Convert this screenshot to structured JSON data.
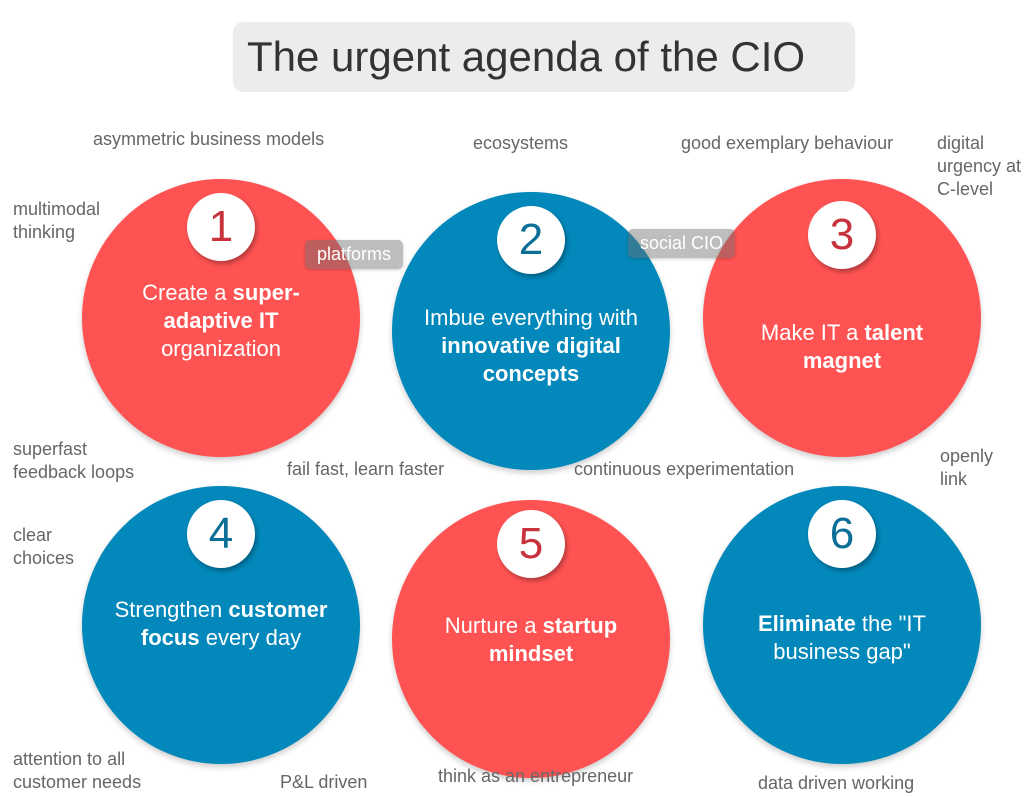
{
  "title": "The urgent agenda of the CIO",
  "items": [
    {
      "number": "1",
      "pre": "Create a ",
      "bold": "super-adaptive IT",
      "post": " organization",
      "color": "#ff5353"
    },
    {
      "number": "2",
      "pre": "Imbue everything with ",
      "bold": "innovative digital concepts",
      "post": "",
      "color": "#0288bb"
    },
    {
      "number": "3",
      "pre": "Make IT a ",
      "bold": "talent magnet",
      "post": "",
      "color": "#ff5353"
    },
    {
      "number": "4",
      "pre": "Strengthen ",
      "bold": "customer focus",
      "post": " every day",
      "color": "#0288bb"
    },
    {
      "number": "5",
      "pre": "Nurture a ",
      "bold": "startup mindset",
      "post": "",
      "color": "#ff5353"
    },
    {
      "number": "6",
      "pre": "",
      "bold": "Eliminate",
      "post": " the \"IT business gap\"",
      "color": "#0288bb"
    }
  ],
  "labels": {
    "asymmetric": "asymmetric business models",
    "ecosystems": "ecosystems",
    "exemplary": "good exemplary behaviour",
    "urgency": "digital urgency at C-level",
    "multimodal": "multimodal thinking",
    "superfast": "superfast feedback loops",
    "failfast": "fail fast, learn faster",
    "experimentation": "continuous experimentation",
    "openly": "openly link",
    "clear": "clear choices",
    "attention": "attention to all customer needs",
    "pl": "P&L driven",
    "entrepreneur": "think as an entrepreneur",
    "datadriven": "data driven working"
  },
  "tags": {
    "platforms": "platforms",
    "social": "social CIO"
  }
}
